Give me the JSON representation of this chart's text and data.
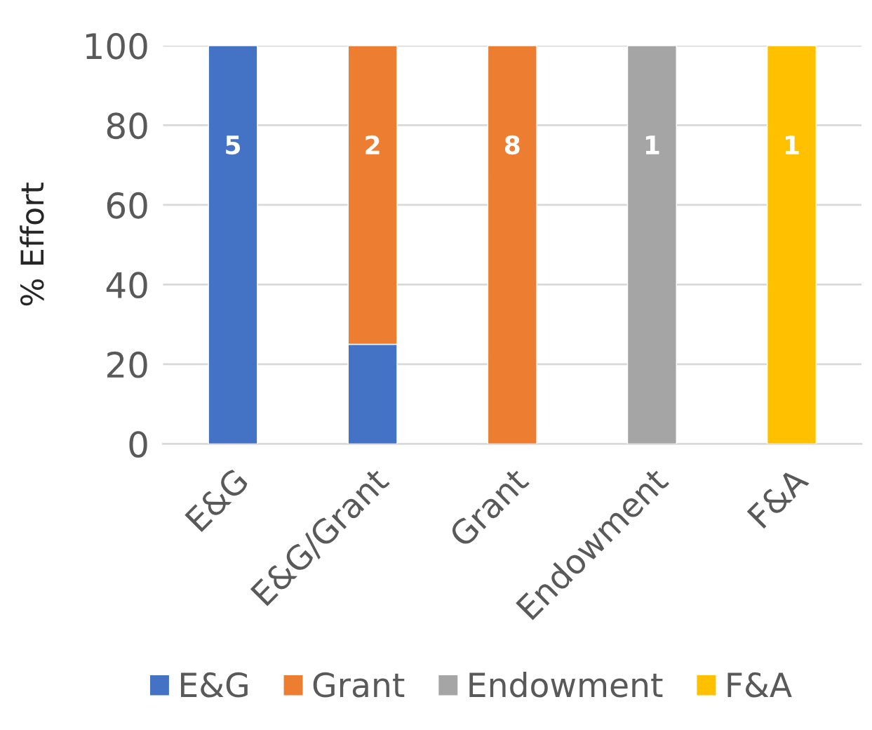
{
  "chart_data": {
    "type": "bar",
    "stacked": true,
    "ylabel": "% Effort",
    "categories": [
      "E&G",
      "E&G/Grant",
      "Grant",
      "Endowment",
      "F&A"
    ],
    "series": [
      {
        "name": "E&G",
        "color": "#4472c4",
        "values": [
          100,
          25,
          null,
          null,
          null
        ]
      },
      {
        "name": "Grant",
        "color": "#ed7d31",
        "values": [
          null,
          75,
          100,
          null,
          null
        ]
      },
      {
        "name": "Endowment",
        "color": "#a5a5a5",
        "values": [
          null,
          null,
          null,
          100,
          null
        ]
      },
      {
        "name": "F&A",
        "color": "#ffc000",
        "values": [
          null,
          null,
          null,
          null,
          100
        ]
      }
    ],
    "ylim": [
      0,
      100
    ],
    "yticks": [
      0,
      20,
      40,
      60,
      80,
      100
    ],
    "grid": "y",
    "legend": "bottom",
    "annotations": [
      "5",
      "2",
      "8",
      "1",
      "1"
    ]
  }
}
